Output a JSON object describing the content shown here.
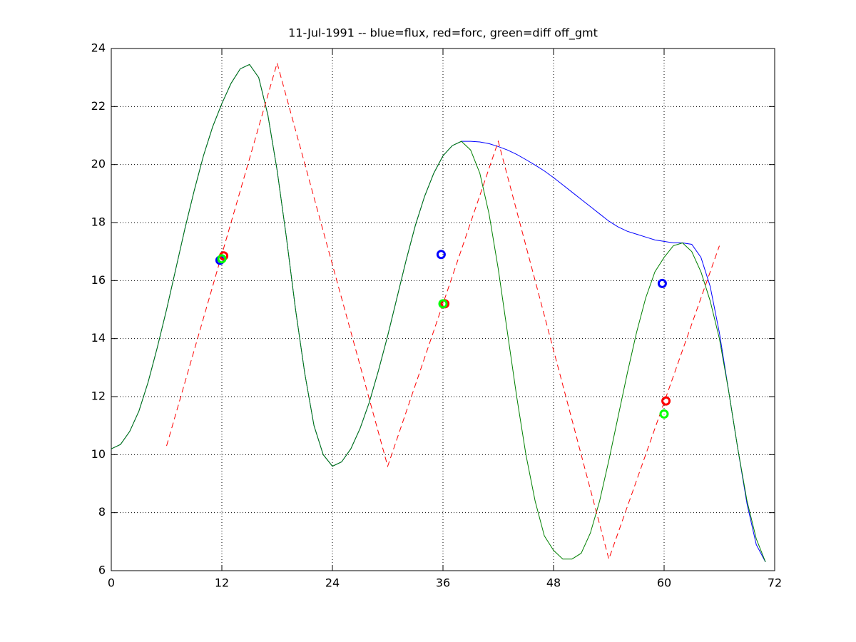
{
  "chart_data": {
    "type": "line",
    "title": "11-Jul-1991 -- blue=flux, red=forc, green=diff off_gmt",
    "xlim": [
      0,
      72
    ],
    "xticks": [
      0,
      12,
      24,
      36,
      48,
      60,
      72
    ],
    "ylim": [
      6,
      24
    ],
    "yticks": [
      6,
      8,
      10,
      12,
      14,
      16,
      18,
      20,
      22,
      24
    ],
    "grid": true,
    "series": [
      {
        "color": "#0000ff",
        "style": "solid",
        "x": [
          0,
          1,
          2,
          3,
          4,
          5,
          6,
          7,
          8,
          9,
          10,
          11,
          12,
          13,
          14,
          15,
          16,
          17,
          18,
          19,
          20,
          21,
          22,
          23,
          24,
          25,
          26,
          27,
          28,
          29,
          30,
          31,
          32,
          33,
          34,
          35,
          36,
          37,
          38,
          39,
          40,
          41,
          42,
          43,
          44,
          45,
          46,
          47,
          48,
          49,
          50,
          51,
          52,
          53,
          54,
          55,
          56,
          57,
          58,
          59,
          60,
          61,
          62,
          63,
          64,
          65,
          66,
          67,
          68,
          69,
          70,
          71
        ],
        "values": [
          10.2,
          10.35,
          10.8,
          11.5,
          12.5,
          13.7,
          15.0,
          16.4,
          17.8,
          19.1,
          20.3,
          21.3,
          22.1,
          22.8,
          23.3,
          23.45,
          23.0,
          21.7,
          19.8,
          17.5,
          15.0,
          12.8,
          11.0,
          10.0,
          9.6,
          9.75,
          10.2,
          10.9,
          11.8,
          12.9,
          14.1,
          15.4,
          16.7,
          17.9,
          18.9,
          19.7,
          20.3,
          20.65,
          20.8,
          20.8,
          20.78,
          20.72,
          20.62,
          20.5,
          20.35,
          20.17,
          19.98,
          19.78,
          19.55,
          19.3,
          19.05,
          18.8,
          18.55,
          18.3,
          18.05,
          17.85,
          17.7,
          17.6,
          17.5,
          17.4,
          17.35,
          17.3,
          17.3,
          17.25,
          16.8,
          15.8,
          14.2,
          12.2,
          10.2,
          8.3,
          6.9,
          6.3
        ]
      },
      {
        "color": "#008000",
        "style": "solid",
        "x": [
          0,
          1,
          2,
          3,
          4,
          5,
          6,
          7,
          8,
          9,
          10,
          11,
          12,
          13,
          14,
          15,
          16,
          17,
          18,
          19,
          20,
          21,
          22,
          23,
          24,
          25,
          26,
          27,
          28,
          29,
          30,
          31,
          32,
          33,
          34,
          35,
          36,
          37,
          38,
          39,
          40,
          41,
          42,
          43,
          44,
          45,
          46,
          47,
          48,
          49,
          50,
          51,
          52,
          53,
          54,
          55,
          56,
          57,
          58,
          59,
          60,
          61,
          62,
          63,
          64,
          65,
          66,
          67,
          68,
          69,
          70,
          71
        ],
        "values": [
          10.2,
          10.35,
          10.8,
          11.5,
          12.5,
          13.7,
          15.0,
          16.4,
          17.8,
          19.1,
          20.3,
          21.3,
          22.1,
          22.8,
          23.3,
          23.45,
          23.0,
          21.7,
          19.8,
          17.5,
          15.0,
          12.8,
          11.0,
          10.0,
          9.6,
          9.75,
          10.2,
          10.9,
          11.8,
          12.9,
          14.1,
          15.4,
          16.7,
          17.9,
          18.9,
          19.7,
          20.3,
          20.65,
          20.8,
          20.5,
          19.7,
          18.3,
          16.4,
          14.2,
          12.0,
          10.0,
          8.4,
          7.2,
          6.7,
          6.4,
          6.4,
          6.6,
          7.3,
          8.4,
          9.8,
          11.3,
          12.8,
          14.2,
          15.4,
          16.3,
          16.8,
          17.2,
          17.3,
          17.0,
          16.3,
          15.3,
          14.0,
          12.2,
          10.2,
          8.4,
          7.1,
          6.3
        ]
      },
      {
        "color": "#ff0000",
        "style": "dashed",
        "x": [
          6,
          18,
          30,
          42,
          54,
          66
        ],
        "values": [
          10.3,
          23.5,
          9.6,
          20.8,
          6.4,
          17.2
        ]
      },
      {
        "color": "#0000ff",
        "style": "markers",
        "x": [
          11.8,
          35.8,
          59.8
        ],
        "values": [
          16.7,
          16.9,
          15.9
        ]
      },
      {
        "color": "#ff0000",
        "style": "markers",
        "x": [
          12.2,
          36.2,
          60.2
        ],
        "values": [
          16.85,
          15.2,
          11.85
        ]
      },
      {
        "color": "#00ff00",
        "style": "markers",
        "x": [
          12,
          36,
          60
        ],
        "values": [
          16.75,
          15.2,
          11.4
        ]
      }
    ]
  }
}
